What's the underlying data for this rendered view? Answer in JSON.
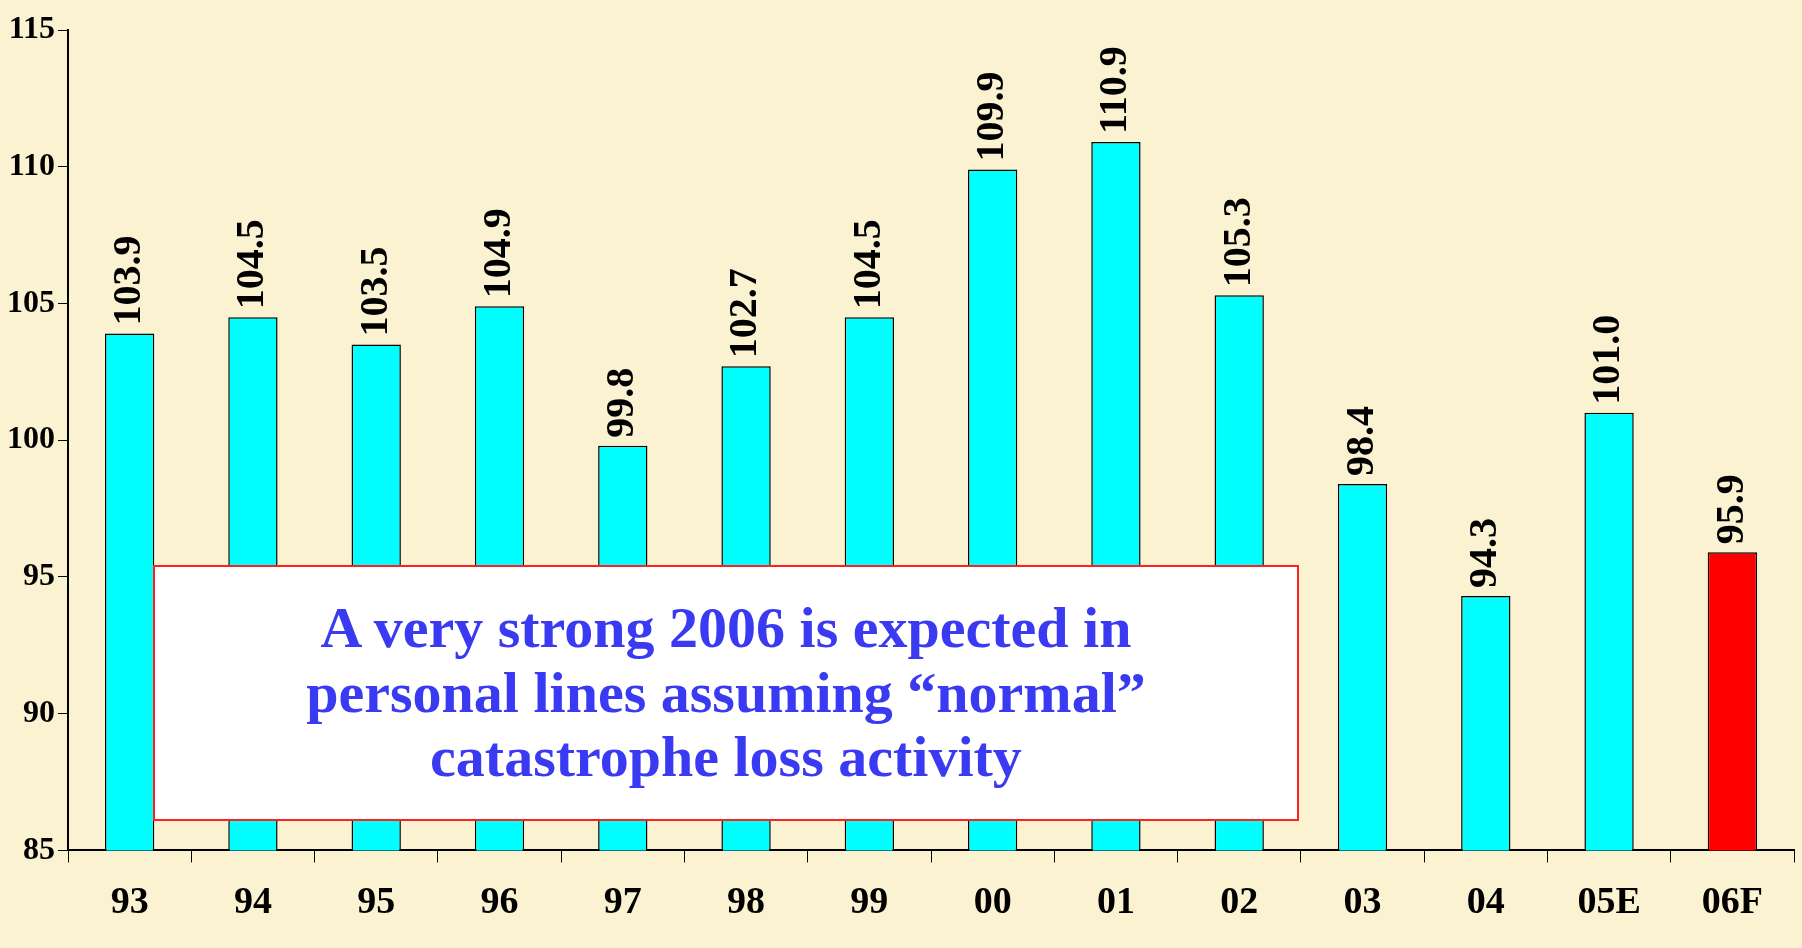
{
  "chart_data": {
    "type": "bar",
    "categories": [
      "93",
      "94",
      "95",
      "96",
      "97",
      "98",
      "99",
      "00",
      "01",
      "02",
      "03",
      "04",
      "05E",
      "06F"
    ],
    "values": [
      103.9,
      104.5,
      103.5,
      104.9,
      99.8,
      102.7,
      104.5,
      109.9,
      110.9,
      105.3,
      98.4,
      94.3,
      101.0,
      95.9
    ],
    "value_labels": [
      "103.9",
      "104.5",
      "103.5",
      "104.9",
      "99.8",
      "102.7",
      "104.5",
      "109.9",
      "110.9",
      "105.3",
      "98.4",
      "94.3",
      "101.0",
      "95.9"
    ],
    "colors": [
      "#00ffff",
      "#00ffff",
      "#00ffff",
      "#00ffff",
      "#00ffff",
      "#00ffff",
      "#00ffff",
      "#00ffff",
      "#00ffff",
      "#00ffff",
      "#00ffff",
      "#00ffff",
      "#00ffff",
      "#ff0000"
    ],
    "ylim": [
      85,
      115
    ],
    "yticks": [
      85,
      90,
      95,
      100,
      105,
      110,
      115
    ],
    "grid": false,
    "legend": false,
    "annotations": [
      "A very strong 2006 is expected in personal lines assuming “normal” catastrophe loss activity"
    ]
  }
}
